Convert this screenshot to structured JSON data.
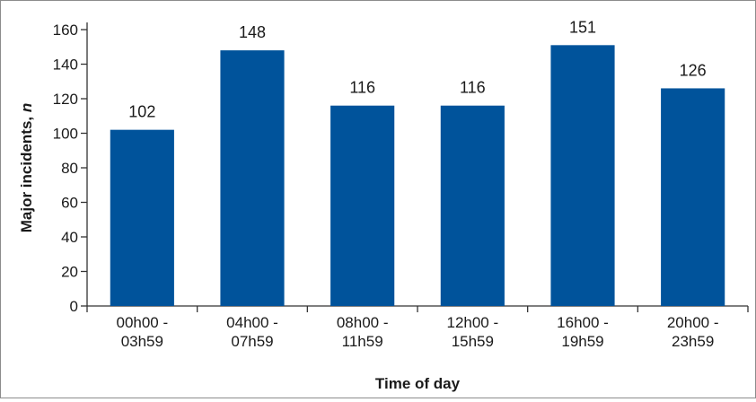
{
  "chart_data": {
    "type": "bar",
    "categories": [
      [
        "00h00 -",
        "03h59"
      ],
      [
        "04h00 -",
        "07h59"
      ],
      [
        "08h00 -",
        "11h59"
      ],
      [
        "12h00 -",
        "15h59"
      ],
      [
        "16h00 -",
        "19h59"
      ],
      [
        "20h00 -",
        "23h59"
      ]
    ],
    "values": [
      102,
      148,
      116,
      116,
      151,
      126
    ],
    "data_labels": [
      "102",
      "148",
      "116",
      "116",
      "151",
      "126"
    ],
    "xlabel": "Time of day",
    "ylabel_main": "Major incidents, ",
    "ylabel_italic": "n",
    "ylim": [
      0,
      160
    ],
    "yticks": [
      0,
      20,
      40,
      60,
      80,
      100,
      120,
      140,
      160
    ],
    "grid": false,
    "legend": "none",
    "bar_color": "#00539b"
  }
}
